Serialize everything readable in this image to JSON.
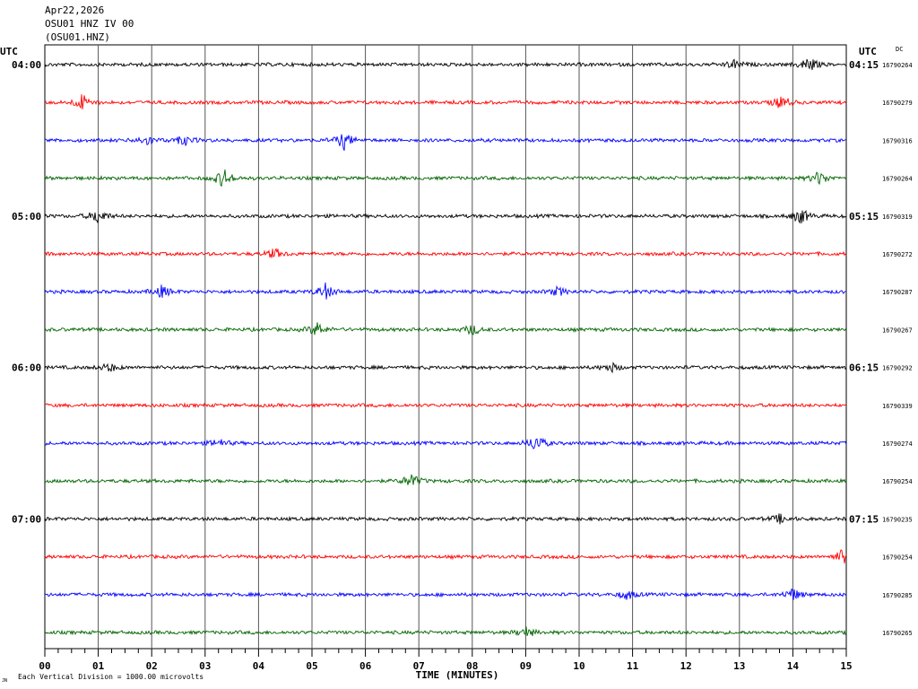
{
  "header": {
    "date": "Apr22,2026",
    "station_line": "OSU01 HNZ IV 00",
    "channel_line": "(OSU01.HNZ)"
  },
  "labels": {
    "utc_left": "UTC",
    "utc_right": "UTC",
    "dc": "DC",
    "xlabel": "TIME (MINUTES)",
    "scale_note": "Each Vertical Division = 1000.00 microvolts",
    "corner_mark": "JN"
  },
  "chart_data": {
    "type": "line",
    "title": "",
    "xlabel": "TIME (MINUTES)",
    "ylabel": "",
    "xlim": [
      0,
      15
    ],
    "x_ticks": [
      "00",
      "01",
      "02",
      "03",
      "04",
      "05",
      "06",
      "07",
      "08",
      "09",
      "10",
      "11",
      "12",
      "13",
      "14",
      "15"
    ],
    "grid": true,
    "trace_colors": [
      "#000000",
      "#ff0000",
      "#0000ff",
      "#006400"
    ],
    "series": [
      {
        "left_time": "04:00",
        "right_time": "04:15",
        "dc": "16790264"
      },
      {
        "left_time": "",
        "right_time": "",
        "dc": "16790279"
      },
      {
        "left_time": "",
        "right_time": "",
        "dc": "16790316"
      },
      {
        "left_time": "",
        "right_time": "",
        "dc": "16790264"
      },
      {
        "left_time": "05:00",
        "right_time": "05:15",
        "dc": "16790319"
      },
      {
        "left_time": "",
        "right_time": "",
        "dc": "16790272"
      },
      {
        "left_time": "",
        "right_time": "",
        "dc": "16790287"
      },
      {
        "left_time": "",
        "right_time": "",
        "dc": "16790267"
      },
      {
        "left_time": "06:00",
        "right_time": "06:15",
        "dc": "16790292"
      },
      {
        "left_time": "",
        "right_time": "",
        "dc": "16790339"
      },
      {
        "left_time": "",
        "right_time": "",
        "dc": "16790274"
      },
      {
        "left_time": "",
        "right_time": "",
        "dc": "16790254"
      },
      {
        "left_time": "07:00",
        "right_time": "07:15",
        "dc": "16790235"
      },
      {
        "left_time": "",
        "right_time": "",
        "dc": "16790254"
      },
      {
        "left_time": "",
        "right_time": "",
        "dc": "16790285"
      },
      {
        "left_time": "",
        "right_time": "",
        "dc": "16790265"
      }
    ],
    "events": [
      {
        "trace": 0,
        "minute": 14.3,
        "amp": 9
      },
      {
        "trace": 0,
        "minute": 12.9,
        "amp": 5
      },
      {
        "trace": 1,
        "minute": 0.7,
        "amp": 9
      },
      {
        "trace": 1,
        "minute": 13.8,
        "amp": 8
      },
      {
        "trace": 2,
        "minute": 5.6,
        "amp": 10
      },
      {
        "trace": 2,
        "minute": 1.9,
        "amp": 6
      },
      {
        "trace": 2,
        "minute": 2.6,
        "amp": 6
      },
      {
        "trace": 3,
        "minute": 3.35,
        "amp": 11
      },
      {
        "trace": 3,
        "minute": 14.5,
        "amp": 8
      },
      {
        "trace": 4,
        "minute": 1.0,
        "amp": 9
      },
      {
        "trace": 4,
        "minute": 14.15,
        "amp": 9
      },
      {
        "trace": 5,
        "minute": 4.3,
        "amp": 6
      },
      {
        "trace": 6,
        "minute": 2.2,
        "amp": 7
      },
      {
        "trace": 6,
        "minute": 5.25,
        "amp": 9
      },
      {
        "trace": 6,
        "minute": 9.6,
        "amp": 5
      },
      {
        "trace": 7,
        "minute": 5.1,
        "amp": 8
      },
      {
        "trace": 7,
        "minute": 8.0,
        "amp": 6
      },
      {
        "trace": 8,
        "minute": 1.2,
        "amp": 5
      },
      {
        "trace": 8,
        "minute": 10.6,
        "amp": 5
      },
      {
        "trace": 10,
        "minute": 9.2,
        "amp": 10
      },
      {
        "trace": 10,
        "minute": 3.25,
        "amp": 5
      },
      {
        "trace": 11,
        "minute": 6.85,
        "amp": 8
      },
      {
        "trace": 12,
        "minute": 13.75,
        "amp": 5
      },
      {
        "trace": 13,
        "minute": 14.95,
        "amp": 10
      },
      {
        "trace": 14,
        "minute": 14.0,
        "amp": 7
      },
      {
        "trace": 14,
        "minute": 10.9,
        "amp": 5
      },
      {
        "trace": 15,
        "minute": 9.0,
        "amp": 6
      }
    ]
  }
}
